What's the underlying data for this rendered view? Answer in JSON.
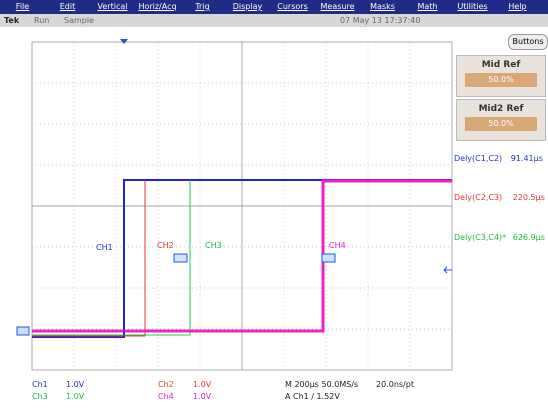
{
  "menu": [
    "File",
    "Edit",
    "Vertical",
    "Horiz/Acq",
    "Trig",
    "Display",
    "Cursors",
    "Measure",
    "Masks",
    "Math",
    "Utilities",
    "Help"
  ],
  "status": {
    "brand": "Tek",
    "state": "Run",
    "mode": "Sample",
    "datetime": "07 May 13 17:37:40",
    "button": "Buttons"
  },
  "panel": [
    {
      "title": "Mid Ref",
      "value": "50.0%"
    },
    {
      "title": "Mid2 Ref",
      "value": "50.0%"
    }
  ],
  "measurements": [
    {
      "label": "Dely(C1,C2)",
      "value": "91.41µs"
    },
    {
      "label": "Dely(C2,C3)",
      "value": "220.5µs"
    },
    {
      "label": "Dely(C3,C4)*",
      "value": "626.9µs"
    }
  ],
  "channel_labels": [
    "CH1",
    "CH2",
    "CH3",
    "CH4"
  ],
  "readouts": {
    "channels": [
      {
        "name": "Ch1",
        "scale": "1.0V"
      },
      {
        "name": "Ch2",
        "scale": "1.0V"
      },
      {
        "name": "Ch3",
        "scale": "1.0V"
      },
      {
        "name": "Ch4",
        "scale": "1.0V"
      }
    ],
    "timebase": "M 200µs 50.0MS/s",
    "record": "20.0ns/pt",
    "trigger": "A Ch1 ∕ 1.52V"
  }
}
